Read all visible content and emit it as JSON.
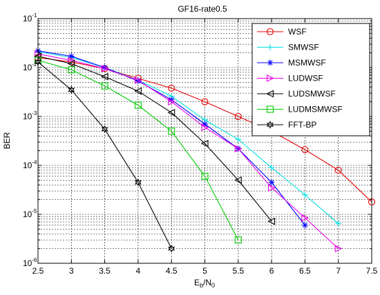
{
  "chart_data": {
    "type": "line",
    "title": "GF16-rate0.5",
    "xlabel_main": "E",
    "xlabel_sub1": "b",
    "xlabel_mid": "/N",
    "xlabel_sub2": "0",
    "ylabel": "BER",
    "xlim": [
      2.5,
      7.5
    ],
    "ylim": [
      1e-06,
      0.1
    ],
    "yscale": "log",
    "grid": "on (dashed, major and minor)",
    "legend_position": "top-right",
    "x_ticks": [
      2.5,
      3,
      3.5,
      4,
      4.5,
      5,
      5.5,
      6,
      6.5,
      7,
      7.5
    ],
    "x_tick_labels": [
      "2.5",
      "3",
      "3.5",
      "4",
      "4.5",
      "5",
      "5.5",
      "6",
      "6.5",
      "7",
      "7.5"
    ],
    "y_tick_base": "10",
    "y_ticks": [
      {
        "value": 1e-06,
        "exp": "-6"
      },
      {
        "value": 1e-05,
        "exp": "-5"
      },
      {
        "value": 0.0001,
        "exp": "-4"
      },
      {
        "value": 0.001,
        "exp": "-3"
      },
      {
        "value": 0.01,
        "exp": "-2"
      },
      {
        "value": 0.1,
        "exp": "-1"
      }
    ],
    "series": [
      {
        "name": "WSF",
        "color": "#e60000",
        "marker": "circle",
        "x": [
          2.5,
          3,
          3.5,
          4,
          4.5,
          5,
          5.5,
          6,
          6.5,
          7,
          7.5
        ],
        "y": [
          0.016,
          0.013,
          0.0095,
          0.006,
          0.0038,
          0.002,
          0.001,
          0.0005,
          0.00021,
          8e-05,
          1.8e-05
        ]
      },
      {
        "name": "SMWSF",
        "color": "#00e0e0",
        "marker": "plus",
        "x": [
          2.5,
          3,
          3.5,
          4,
          4.5,
          5,
          5.5,
          6,
          6.5,
          7
        ],
        "y": [
          0.021,
          0.016,
          0.01,
          0.0055,
          0.0026,
          0.00085,
          0.00034,
          9e-05,
          2.5e-05,
          6.5e-06
        ]
      },
      {
        "name": "MSMWSF",
        "color": "#0000ff",
        "marker": "asterisk",
        "x": [
          2.5,
          3,
          3.5,
          4,
          4.5,
          5,
          5.5,
          6,
          6.5
        ],
        "y": [
          0.022,
          0.017,
          0.01,
          0.0053,
          0.0022,
          0.0007,
          0.00022,
          4.5e-05,
          6e-06
        ]
      },
      {
        "name": "LUDWSF",
        "color": "#e600e6",
        "marker": "triangle-right",
        "x": [
          2.5,
          3,
          3.5,
          4,
          4.5,
          5,
          5.5,
          6,
          6.5,
          7
        ],
        "y": [
          0.019,
          0.014,
          0.0095,
          0.0055,
          0.002,
          0.0006,
          0.00022,
          3.5e-05,
          8.5e-06,
          2e-06
        ]
      },
      {
        "name": "LUDSMWSF",
        "color": "#000000",
        "marker": "triangle-left",
        "x": [
          2.5,
          3,
          3.5,
          4,
          4.5,
          5,
          5.5,
          6
        ],
        "y": [
          0.017,
          0.012,
          0.0065,
          0.0033,
          0.0012,
          0.00028,
          5e-05,
          7.2e-06
        ]
      },
      {
        "name": "LUDMSMWSF",
        "color": "#00cc00",
        "marker": "square",
        "x": [
          2.5,
          3,
          3.5,
          4,
          4.5,
          5,
          5.5
        ],
        "y": [
          0.014,
          0.009,
          0.0042,
          0.0017,
          0.0005,
          6e-05,
          3e-06
        ]
      },
      {
        "name": "FFT-BP",
        "color": "#000000",
        "marker": "hexagram",
        "x": [
          2.5,
          3,
          3.5,
          4,
          4.5
        ],
        "y": [
          0.013,
          0.0035,
          0.00055,
          4.5e-05,
          2e-06
        ]
      }
    ]
  }
}
